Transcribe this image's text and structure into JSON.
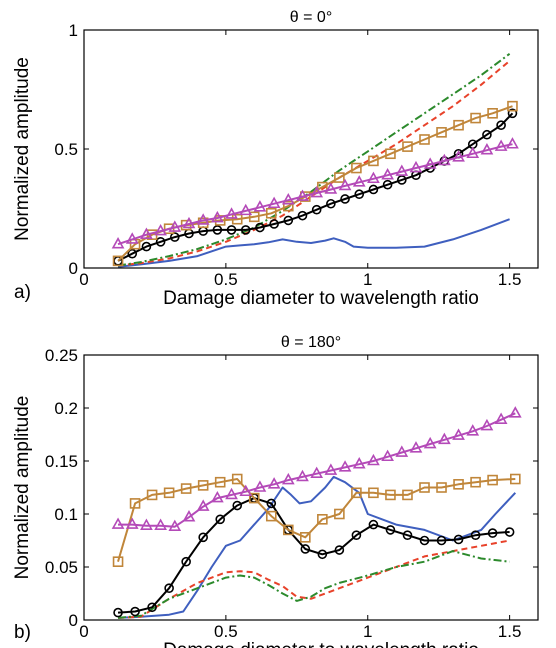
{
  "chart_data": [
    {
      "type": "line",
      "panel_label": "a)",
      "title": "θ = 0°",
      "xlabel": "Damage diameter to wavelength ratio",
      "ylabel": "Normalized amplitude",
      "xlim": [
        0,
        1.6
      ],
      "ylim": [
        0,
        1
      ],
      "xticks": [
        0,
        0.5,
        1,
        1.5
      ],
      "yticks": [
        0,
        0.5,
        1
      ],
      "xtick_labels": [
        "0",
        "0.5",
        "1",
        "1.5"
      ],
      "ytick_labels": [
        "0",
        "0.5",
        "1"
      ],
      "grid": false,
      "series": [
        {
          "color": "#3f5fbf",
          "dash": "",
          "marker": "none",
          "x": [
            0.12,
            0.2,
            0.3,
            0.4,
            0.45,
            0.5,
            0.55,
            0.6,
            0.65,
            0.7,
            0.75,
            0.8,
            0.85,
            0.88,
            0.92,
            0.95,
            1.0,
            1.1,
            1.2,
            1.3,
            1.4,
            1.5
          ],
          "y": [
            0.005,
            0.015,
            0.03,
            0.05,
            0.07,
            0.09,
            0.095,
            0.1,
            0.108,
            0.12,
            0.11,
            0.105,
            0.115,
            0.125,
            0.11,
            0.09,
            0.085,
            0.085,
            0.09,
            0.12,
            0.16,
            0.205
          ]
        },
        {
          "color": "#e8422a",
          "dash": "6,4",
          "marker": "none",
          "x": [
            0.12,
            0.2,
            0.3,
            0.4,
            0.5,
            0.6,
            0.7,
            0.8,
            0.9,
            1.0,
            1.1,
            1.2,
            1.3,
            1.4,
            1.5
          ],
          "y": [
            0.01,
            0.02,
            0.04,
            0.07,
            0.11,
            0.16,
            0.22,
            0.3,
            0.38,
            0.45,
            0.52,
            0.6,
            0.68,
            0.77,
            0.87
          ]
        },
        {
          "color": "#2c8a2c",
          "dash": "8,3,2,3",
          "marker": "none",
          "x": [
            0.12,
            0.2,
            0.3,
            0.4,
            0.5,
            0.6,
            0.7,
            0.8,
            0.9,
            1.0,
            1.1,
            1.2,
            1.3,
            1.4,
            1.5
          ],
          "y": [
            0.01,
            0.025,
            0.05,
            0.08,
            0.12,
            0.17,
            0.24,
            0.32,
            0.41,
            0.49,
            0.57,
            0.65,
            0.73,
            0.81,
            0.9
          ]
        },
        {
          "color": "#000000",
          "dash": "",
          "marker": "circle",
          "x": [
            0.12,
            0.17,
            0.22,
            0.27,
            0.32,
            0.37,
            0.42,
            0.47,
            0.52,
            0.57,
            0.62,
            0.67,
            0.72,
            0.77,
            0.82,
            0.87,
            0.92,
            0.97,
            1.02,
            1.07,
            1.12,
            1.17,
            1.22,
            1.27,
            1.32,
            1.37,
            1.42,
            1.47,
            1.51
          ],
          "y": [
            0.03,
            0.06,
            0.09,
            0.11,
            0.13,
            0.145,
            0.155,
            0.16,
            0.16,
            0.16,
            0.17,
            0.185,
            0.2,
            0.22,
            0.245,
            0.27,
            0.29,
            0.31,
            0.33,
            0.35,
            0.37,
            0.39,
            0.42,
            0.45,
            0.48,
            0.52,
            0.56,
            0.6,
            0.65
          ]
        },
        {
          "color": "#c0863a",
          "dash": "",
          "marker": "square",
          "x": [
            0.12,
            0.18,
            0.24,
            0.3,
            0.36,
            0.42,
            0.48,
            0.54,
            0.6,
            0.66,
            0.72,
            0.78,
            0.84,
            0.9,
            0.96,
            1.02,
            1.08,
            1.14,
            1.2,
            1.26,
            1.32,
            1.38,
            1.44,
            1.51
          ],
          "y": [
            0.03,
            0.1,
            0.14,
            0.165,
            0.18,
            0.19,
            0.2,
            0.205,
            0.215,
            0.23,
            0.26,
            0.3,
            0.34,
            0.38,
            0.42,
            0.45,
            0.48,
            0.51,
            0.54,
            0.57,
            0.6,
            0.63,
            0.65,
            0.68
          ]
        },
        {
          "color": "#b44ab8",
          "dash": "",
          "marker": "triangle",
          "x": [
            0.12,
            0.17,
            0.22,
            0.27,
            0.32,
            0.37,
            0.42,
            0.47,
            0.52,
            0.57,
            0.62,
            0.67,
            0.72,
            0.77,
            0.82,
            0.87,
            0.92,
            0.97,
            1.02,
            1.07,
            1.12,
            1.17,
            1.22,
            1.27,
            1.32,
            1.37,
            1.42,
            1.47,
            1.51
          ],
          "y": [
            0.1,
            0.12,
            0.14,
            0.155,
            0.17,
            0.185,
            0.2,
            0.21,
            0.225,
            0.24,
            0.255,
            0.27,
            0.285,
            0.3,
            0.315,
            0.33,
            0.345,
            0.36,
            0.375,
            0.39,
            0.405,
            0.42,
            0.435,
            0.45,
            0.465,
            0.48,
            0.495,
            0.51,
            0.52
          ]
        }
      ]
    },
    {
      "type": "line",
      "panel_label": "b)",
      "title": "θ = 180°",
      "xlabel": "Damage diameter to wavelength ratio",
      "ylabel": "Normalized amplitude",
      "xlim": [
        0,
        1.6
      ],
      "ylim": [
        0,
        0.25
      ],
      "xticks": [
        0,
        0.5,
        1,
        1.5
      ],
      "yticks": [
        0,
        0.05,
        0.1,
        0.15,
        0.2,
        0.25
      ],
      "xtick_labels": [
        "0",
        "0.5",
        "1",
        "1.5"
      ],
      "ytick_labels": [
        "0",
        "0.05",
        "0.1",
        "0.15",
        "0.2",
        "0.25"
      ],
      "grid": false,
      "series": [
        {
          "color": "#3f5fbf",
          "dash": "",
          "marker": "none",
          "x": [
            0.12,
            0.2,
            0.3,
            0.35,
            0.4,
            0.45,
            0.5,
            0.55,
            0.6,
            0.65,
            0.7,
            0.73,
            0.76,
            0.8,
            0.85,
            0.88,
            0.92,
            0.97,
            1.0,
            1.1,
            1.2,
            1.3,
            1.4,
            1.45,
            1.52
          ],
          "y": [
            0.002,
            0.003,
            0.005,
            0.008,
            0.028,
            0.05,
            0.07,
            0.075,
            0.09,
            0.105,
            0.125,
            0.118,
            0.11,
            0.112,
            0.125,
            0.135,
            0.13,
            0.12,
            0.1,
            0.09,
            0.085,
            0.075,
            0.085,
            0.1,
            0.12
          ]
        },
        {
          "color": "#e8422a",
          "dash": "6,4",
          "marker": "none",
          "x": [
            0.12,
            0.2,
            0.3,
            0.4,
            0.5,
            0.55,
            0.6,
            0.65,
            0.7,
            0.75,
            0.8,
            0.85,
            0.9,
            1.0,
            1.1,
            1.2,
            1.3,
            1.4,
            1.5
          ],
          "y": [
            0.002,
            0.003,
            0.02,
            0.035,
            0.045,
            0.046,
            0.045,
            0.038,
            0.032,
            0.022,
            0.02,
            0.025,
            0.03,
            0.04,
            0.05,
            0.06,
            0.065,
            0.07,
            0.075
          ]
        },
        {
          "color": "#2c8a2c",
          "dash": "8,3,2,3",
          "marker": "none",
          "x": [
            0.12,
            0.2,
            0.3,
            0.4,
            0.5,
            0.55,
            0.6,
            0.65,
            0.7,
            0.75,
            0.8,
            0.85,
            0.9,
            1.0,
            1.1,
            1.2,
            1.3,
            1.4,
            1.5
          ],
          "y": [
            0.002,
            0.004,
            0.02,
            0.03,
            0.04,
            0.042,
            0.04,
            0.033,
            0.025,
            0.018,
            0.022,
            0.03,
            0.035,
            0.042,
            0.05,
            0.055,
            0.065,
            0.058,
            0.055
          ]
        },
        {
          "color": "#000000",
          "dash": "",
          "marker": "circle",
          "x": [
            0.12,
            0.18,
            0.24,
            0.3,
            0.36,
            0.42,
            0.48,
            0.54,
            0.6,
            0.66,
            0.72,
            0.78,
            0.84,
            0.9,
            0.96,
            1.02,
            1.08,
            1.14,
            1.2,
            1.26,
            1.32,
            1.38,
            1.44,
            1.5
          ],
          "y": [
            0.007,
            0.008,
            0.012,
            0.03,
            0.055,
            0.078,
            0.095,
            0.108,
            0.115,
            0.11,
            0.085,
            0.067,
            0.062,
            0.066,
            0.08,
            0.09,
            0.085,
            0.08,
            0.075,
            0.075,
            0.076,
            0.08,
            0.082,
            0.083
          ]
        },
        {
          "color": "#c0863a",
          "dash": "",
          "marker": "square",
          "x": [
            0.12,
            0.18,
            0.24,
            0.3,
            0.36,
            0.42,
            0.48,
            0.54,
            0.6,
            0.66,
            0.72,
            0.78,
            0.84,
            0.9,
            0.96,
            1.02,
            1.08,
            1.14,
            1.2,
            1.26,
            1.32,
            1.38,
            1.44,
            1.52
          ],
          "y": [
            0.055,
            0.11,
            0.118,
            0.12,
            0.124,
            0.127,
            0.13,
            0.133,
            0.115,
            0.098,
            0.085,
            0.078,
            0.095,
            0.1,
            0.12,
            0.12,
            0.118,
            0.118,
            0.125,
            0.125,
            0.128,
            0.13,
            0.132,
            0.133
          ]
        },
        {
          "color": "#b44ab8",
          "dash": "",
          "marker": "triangle",
          "x": [
            0.12,
            0.17,
            0.22,
            0.27,
            0.32,
            0.37,
            0.42,
            0.47,
            0.52,
            0.57,
            0.62,
            0.67,
            0.72,
            0.77,
            0.82,
            0.87,
            0.92,
            0.97,
            1.02,
            1.07,
            1.12,
            1.17,
            1.22,
            1.27,
            1.32,
            1.37,
            1.42,
            1.47,
            1.52
          ],
          "y": [
            0.09,
            0.09,
            0.089,
            0.089,
            0.088,
            0.097,
            0.107,
            0.115,
            0.118,
            0.121,
            0.125,
            0.128,
            0.132,
            0.135,
            0.138,
            0.141,
            0.144,
            0.147,
            0.15,
            0.154,
            0.158,
            0.162,
            0.166,
            0.17,
            0.174,
            0.178,
            0.183,
            0.189,
            0.195
          ]
        }
      ]
    }
  ]
}
